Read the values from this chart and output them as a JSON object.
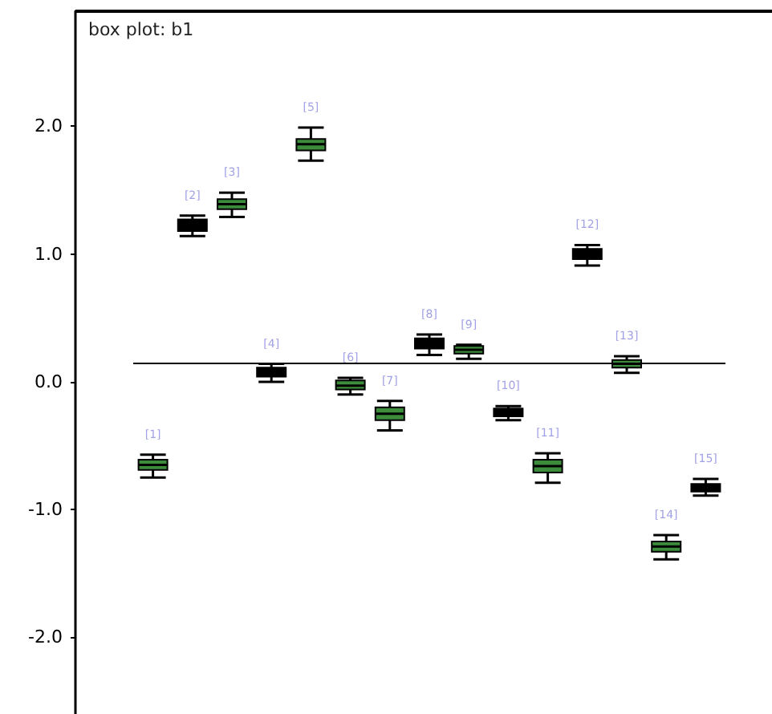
{
  "chart_data": {
    "type": "box",
    "title": "box plot: b1",
    "categories": [
      "[1]",
      "[2]",
      "[3]",
      "[4]",
      "[5]",
      "[6]",
      "[7]",
      "[8]",
      "[9]",
      "[10]",
      "[11]",
      "[12]",
      "[13]",
      "[14]",
      "[15]"
    ],
    "boxes": [
      {
        "low": -0.75,
        "q1": -0.69,
        "median": -0.65,
        "q3": -0.61,
        "high": -0.57
      },
      {
        "low": 1.14,
        "q1": 1.18,
        "median": 1.22,
        "q3": 1.27,
        "high": 1.3
      },
      {
        "low": 1.29,
        "q1": 1.35,
        "median": 1.39,
        "q3": 1.43,
        "high": 1.48
      },
      {
        "low": 0.0,
        "q1": 0.04,
        "median": 0.07,
        "q3": 0.11,
        "high": 0.14
      },
      {
        "low": 1.73,
        "q1": 1.81,
        "median": 1.86,
        "q3": 1.9,
        "high": 1.99
      },
      {
        "low": -0.1,
        "q1": -0.06,
        "median": -0.03,
        "q3": 0.01,
        "high": 0.03
      },
      {
        "low": -0.38,
        "q1": -0.3,
        "median": -0.25,
        "q3": -0.2,
        "high": -0.15
      },
      {
        "low": 0.21,
        "q1": 0.26,
        "median": 0.3,
        "q3": 0.34,
        "high": 0.37
      },
      {
        "low": 0.18,
        "q1": 0.22,
        "median": 0.25,
        "q3": 0.28,
        "high": 0.29
      },
      {
        "low": -0.3,
        "q1": -0.27,
        "median": -0.24,
        "q3": -0.21,
        "high": -0.19
      },
      {
        "low": -0.79,
        "q1": -0.71,
        "median": -0.66,
        "q3": -0.61,
        "high": -0.56
      },
      {
        "low": 0.91,
        "q1": 0.96,
        "median": 1.0,
        "q3": 1.04,
        "high": 1.07
      },
      {
        "low": 0.07,
        "q1": 0.11,
        "median": 0.14,
        "q3": 0.17,
        "high": 0.2
      },
      {
        "low": -1.39,
        "q1": -1.33,
        "median": -1.29,
        "q3": -1.25,
        "high": -1.2
      },
      {
        "low": -0.89,
        "q1": -0.86,
        "median": -0.83,
        "q3": -0.8,
        "high": -0.76
      }
    ],
    "colors": [
      "#3c8c3c",
      "#000000",
      "#3c8c3c",
      "#000000",
      "#3c8c3c",
      "#3c8c3c",
      "#3c8c3c",
      "#000000",
      "#3c8c3c",
      "#000000",
      "#3c8c3c",
      "#000000",
      "#3c8c3c",
      "#3c8c3c",
      "#000000"
    ],
    "ylim": [
      -2.6,
      2.9
    ],
    "yticks": [
      {
        "value": 2,
        "label": "2.0"
      },
      {
        "value": 1,
        "label": "1.0"
      },
      {
        "value": 0,
        "label": "0.0"
      },
      {
        "value": -1,
        "label": "-1.0"
      },
      {
        "value": -2,
        "label": "-2.0"
      }
    ],
    "ref_lines": [
      {
        "axis": "y",
        "value": 0.15,
        "color": "#000000"
      }
    ],
    "tick_labels": "y",
    "grid": false
  }
}
